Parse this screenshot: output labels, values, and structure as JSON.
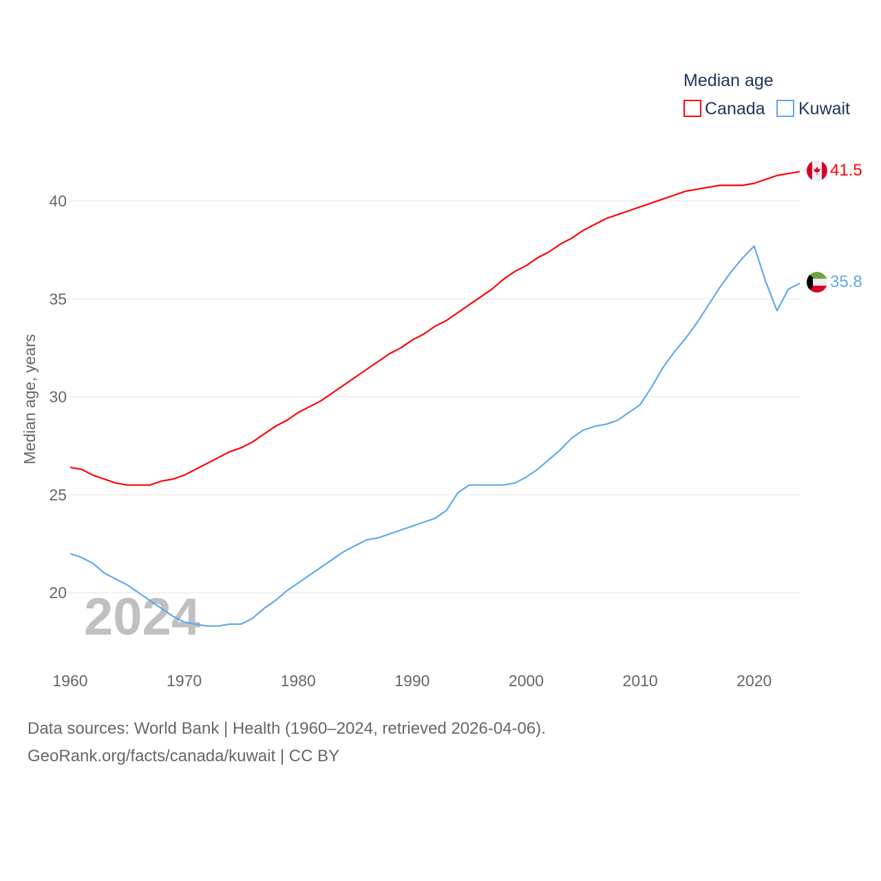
{
  "chart_data": {
    "type": "line",
    "title": "Median age",
    "xlabel": "",
    "ylabel": "Median age, years",
    "xlim": [
      1960,
      2024
    ],
    "ylim": [
      17.5,
      42
    ],
    "yticks": [
      20,
      25,
      30,
      35,
      40
    ],
    "xticks": [
      1960,
      1970,
      1980,
      1990,
      2000,
      2010,
      2020
    ],
    "grid": true,
    "legend_position": "top-right",
    "year_watermark": "2024",
    "x": [
      1960,
      1961,
      1962,
      1963,
      1964,
      1965,
      1966,
      1967,
      1968,
      1969,
      1970,
      1971,
      1972,
      1973,
      1974,
      1975,
      1976,
      1977,
      1978,
      1979,
      1980,
      1981,
      1982,
      1983,
      1984,
      1985,
      1986,
      1987,
      1988,
      1989,
      1990,
      1991,
      1992,
      1993,
      1994,
      1995,
      1996,
      1997,
      1998,
      1999,
      2000,
      2001,
      2002,
      2003,
      2004,
      2005,
      2006,
      2007,
      2008,
      2009,
      2010,
      2011,
      2012,
      2013,
      2014,
      2015,
      2016,
      2017,
      2018,
      2019,
      2020,
      2021,
      2022,
      2023,
      2024
    ],
    "series": [
      {
        "name": "Canada",
        "color": "#ff0000",
        "end_label": "41.5",
        "values": [
          26.4,
          26.3,
          26.0,
          25.8,
          25.6,
          25.5,
          25.5,
          25.5,
          25.7,
          25.8,
          26.0,
          26.3,
          26.6,
          26.9,
          27.2,
          27.4,
          27.7,
          28.1,
          28.5,
          28.8,
          29.2,
          29.5,
          29.8,
          30.2,
          30.6,
          31.0,
          31.4,
          31.8,
          32.2,
          32.5,
          32.9,
          33.2,
          33.6,
          33.9,
          34.3,
          34.7,
          35.1,
          35.5,
          36.0,
          36.4,
          36.7,
          37.1,
          37.4,
          37.8,
          38.1,
          38.5,
          38.8,
          39.1,
          39.3,
          39.5,
          39.7,
          39.9,
          40.1,
          40.3,
          40.5,
          40.6,
          40.7,
          40.8,
          40.8,
          40.8,
          40.9,
          41.1,
          41.3,
          41.4,
          41.5
        ]
      },
      {
        "name": "Kuwait",
        "color": "#5ea8ec",
        "end_label": "35.8",
        "values": [
          22.0,
          21.8,
          21.5,
          21.0,
          20.7,
          20.4,
          20.0,
          19.6,
          19.2,
          18.8,
          18.5,
          18.4,
          18.3,
          18.3,
          18.4,
          18.4,
          18.7,
          19.2,
          19.6,
          20.1,
          20.5,
          20.9,
          21.3,
          21.7,
          22.1,
          22.4,
          22.7,
          22.8,
          23.0,
          23.2,
          23.4,
          23.6,
          23.8,
          24.2,
          25.1,
          25.5,
          25.5,
          25.5,
          25.5,
          25.6,
          25.9,
          26.3,
          26.8,
          27.3,
          27.9,
          28.3,
          28.5,
          28.6,
          28.8,
          29.2,
          29.6,
          30.5,
          31.5,
          32.3,
          33.0,
          33.8,
          34.7,
          35.6,
          36.4,
          37.1,
          37.7,
          35.9,
          34.4,
          35.5,
          35.8
        ]
      }
    ]
  },
  "footer": {
    "line1": "Data sources: World Bank | Health (1960–2024, retrieved 2026-04-06).",
    "line2": "GeoRank.org/facts/canada/kuwait | CC BY"
  }
}
